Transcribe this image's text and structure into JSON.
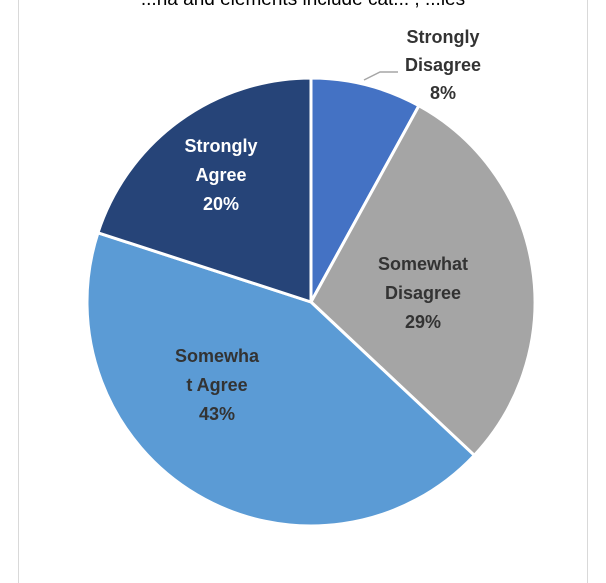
{
  "page": {
    "clipped_title": "...na and elements include cat... ,  ...les"
  },
  "chart_data": {
    "type": "pie",
    "slices": [
      {
        "label_lines": [
          "Strongly",
          "Disagree",
          "8%"
        ],
        "value": 8,
        "color": "#4472c4",
        "text_color": "#333333"
      },
      {
        "label_lines": [
          "Somewhat",
          "Disagree",
          "29%"
        ],
        "value": 29,
        "color": "#a5a5a5",
        "text_color": "#333333"
      },
      {
        "label_lines": [
          "Somewha",
          "t Agree",
          "43%"
        ],
        "value": 43,
        "color": "#5b9bd5",
        "text_color": "#333333"
      },
      {
        "label_lines": [
          "Strongly",
          "Agree",
          "20%"
        ],
        "value": 20,
        "color": "#264478",
        "text_color": "#ffffff"
      }
    ]
  }
}
